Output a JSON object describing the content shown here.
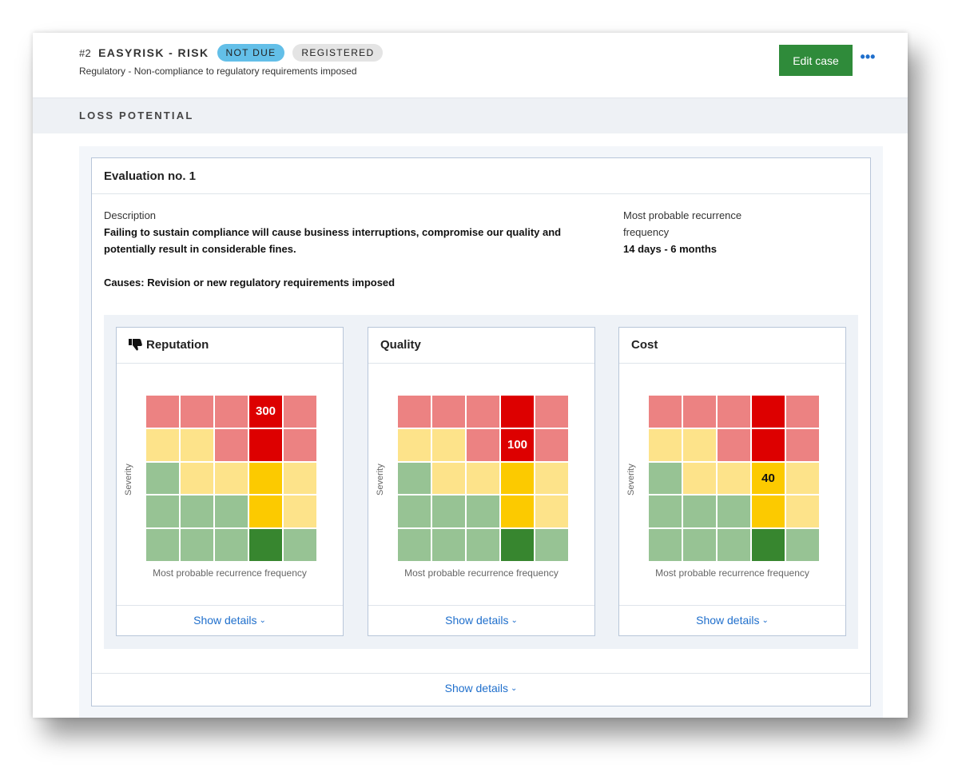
{
  "header": {
    "case_number": "#2",
    "case_title": "EASYRISK - RISK",
    "status_badges": [
      "NOT DUE",
      "REGISTERED"
    ],
    "subtitle": "Regulatory - Non-compliance to regulatory requirements imposed",
    "edit_button": "Edit case",
    "more_button": "•••"
  },
  "section": {
    "title": "LOSS POTENTIAL"
  },
  "evaluation": {
    "title": "Evaluation no. 1",
    "description_label": "Description",
    "description_line1": "Failing to sustain compliance will cause business interruptions, compromise our quality and",
    "description_line2": "potentially result in considerable fines.",
    "causes": "Causes: Revision or new regulatory requirements imposed",
    "frequency_label_line1": "Most probable recurrence",
    "frequency_label_line2": "frequency",
    "frequency_value": "14 days - 6 months",
    "show_details": "Show details"
  },
  "matrices": [
    {
      "title": "Reputation",
      "icon": "thumbs-down-icon",
      "y_label": "Severity",
      "x_label": "Most probable recurrence frequency",
      "show_details": "Show details",
      "grid": [
        [
          "lr",
          "lr",
          "lr",
          "dr",
          "lr"
        ],
        [
          "ly",
          "ly",
          "lr",
          "dr",
          "lr"
        ],
        [
          "lg",
          "ly",
          "ly",
          "dy",
          "ly"
        ],
        [
          "lg",
          "lg",
          "lg",
          "dy",
          "ly"
        ],
        [
          "lg",
          "lg",
          "lg",
          "dg",
          "lg"
        ]
      ],
      "highlight": {
        "row": 0,
        "col": 3,
        "value": "300"
      }
    },
    {
      "title": "Quality",
      "icon": "",
      "y_label": "Severity",
      "x_label": "Most probable recurrence frequency",
      "show_details": "Show details",
      "grid": [
        [
          "lr",
          "lr",
          "lr",
          "dr",
          "lr"
        ],
        [
          "ly",
          "ly",
          "lr",
          "dr",
          "lr"
        ],
        [
          "lg",
          "ly",
          "ly",
          "dy",
          "ly"
        ],
        [
          "lg",
          "lg",
          "lg",
          "dy",
          "ly"
        ],
        [
          "lg",
          "lg",
          "lg",
          "dg",
          "lg"
        ]
      ],
      "highlight": {
        "row": 1,
        "col": 3,
        "value": "100"
      }
    },
    {
      "title": "Cost",
      "icon": "",
      "y_label": "Severity",
      "x_label": "Most probable recurrence frequency",
      "show_details": "Show details",
      "grid": [
        [
          "lr",
          "lr",
          "lr",
          "dr",
          "lr"
        ],
        [
          "ly",
          "ly",
          "lr",
          "dr",
          "lr"
        ],
        [
          "lg",
          "ly",
          "ly",
          "dy",
          "ly"
        ],
        [
          "lg",
          "lg",
          "lg",
          "dy",
          "ly"
        ],
        [
          "lg",
          "lg",
          "lg",
          "dg",
          "lg"
        ]
      ],
      "highlight": {
        "row": 2,
        "col": 3,
        "value": "40"
      }
    }
  ],
  "colors": {
    "lr": "#ec8282",
    "dr": "#dd0000",
    "ly": "#fde38a",
    "dy": "#fcca00",
    "lg": "#97c394",
    "dg": "#37862f",
    "accent_green": "#2f8b3a",
    "link_blue": "#1f6fcc",
    "not_due_badge": "#63bfe8"
  }
}
